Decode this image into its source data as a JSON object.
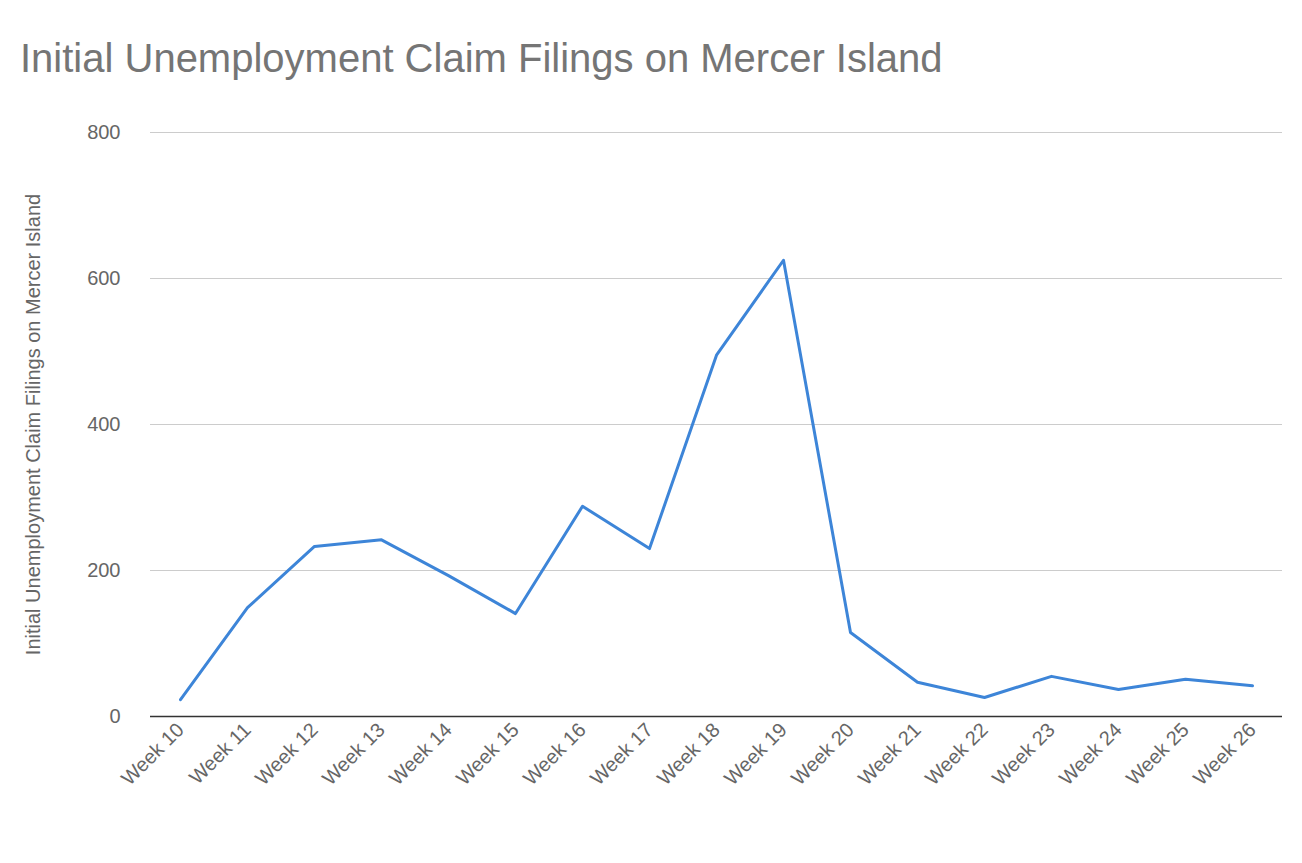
{
  "chart_data": {
    "type": "line",
    "title": "Initial Unemployment Claim Filings on Mercer Island",
    "y_label": "Initial Unemployment Claim Filings on Mercer Island",
    "categories": [
      "Week 10",
      "Week 11",
      "Week 12",
      "Week 13",
      "Week 14",
      "Week 15",
      "Week 16",
      "Week 17",
      "Week 18",
      "Week 19",
      "Week 20",
      "Week 21",
      "Week 22",
      "Week 23",
      "Week 24",
      "Week 25",
      "Week 26"
    ],
    "values": [
      23,
      149,
      233,
      242,
      193,
      141,
      288,
      230,
      495,
      625,
      115,
      47,
      26,
      55,
      37,
      51,
      42
    ],
    "color": "#3d85d8",
    "ylim": [
      0,
      800
    ],
    "yticks": [
      0,
      200,
      400,
      600,
      800
    ],
    "grid": true
  }
}
